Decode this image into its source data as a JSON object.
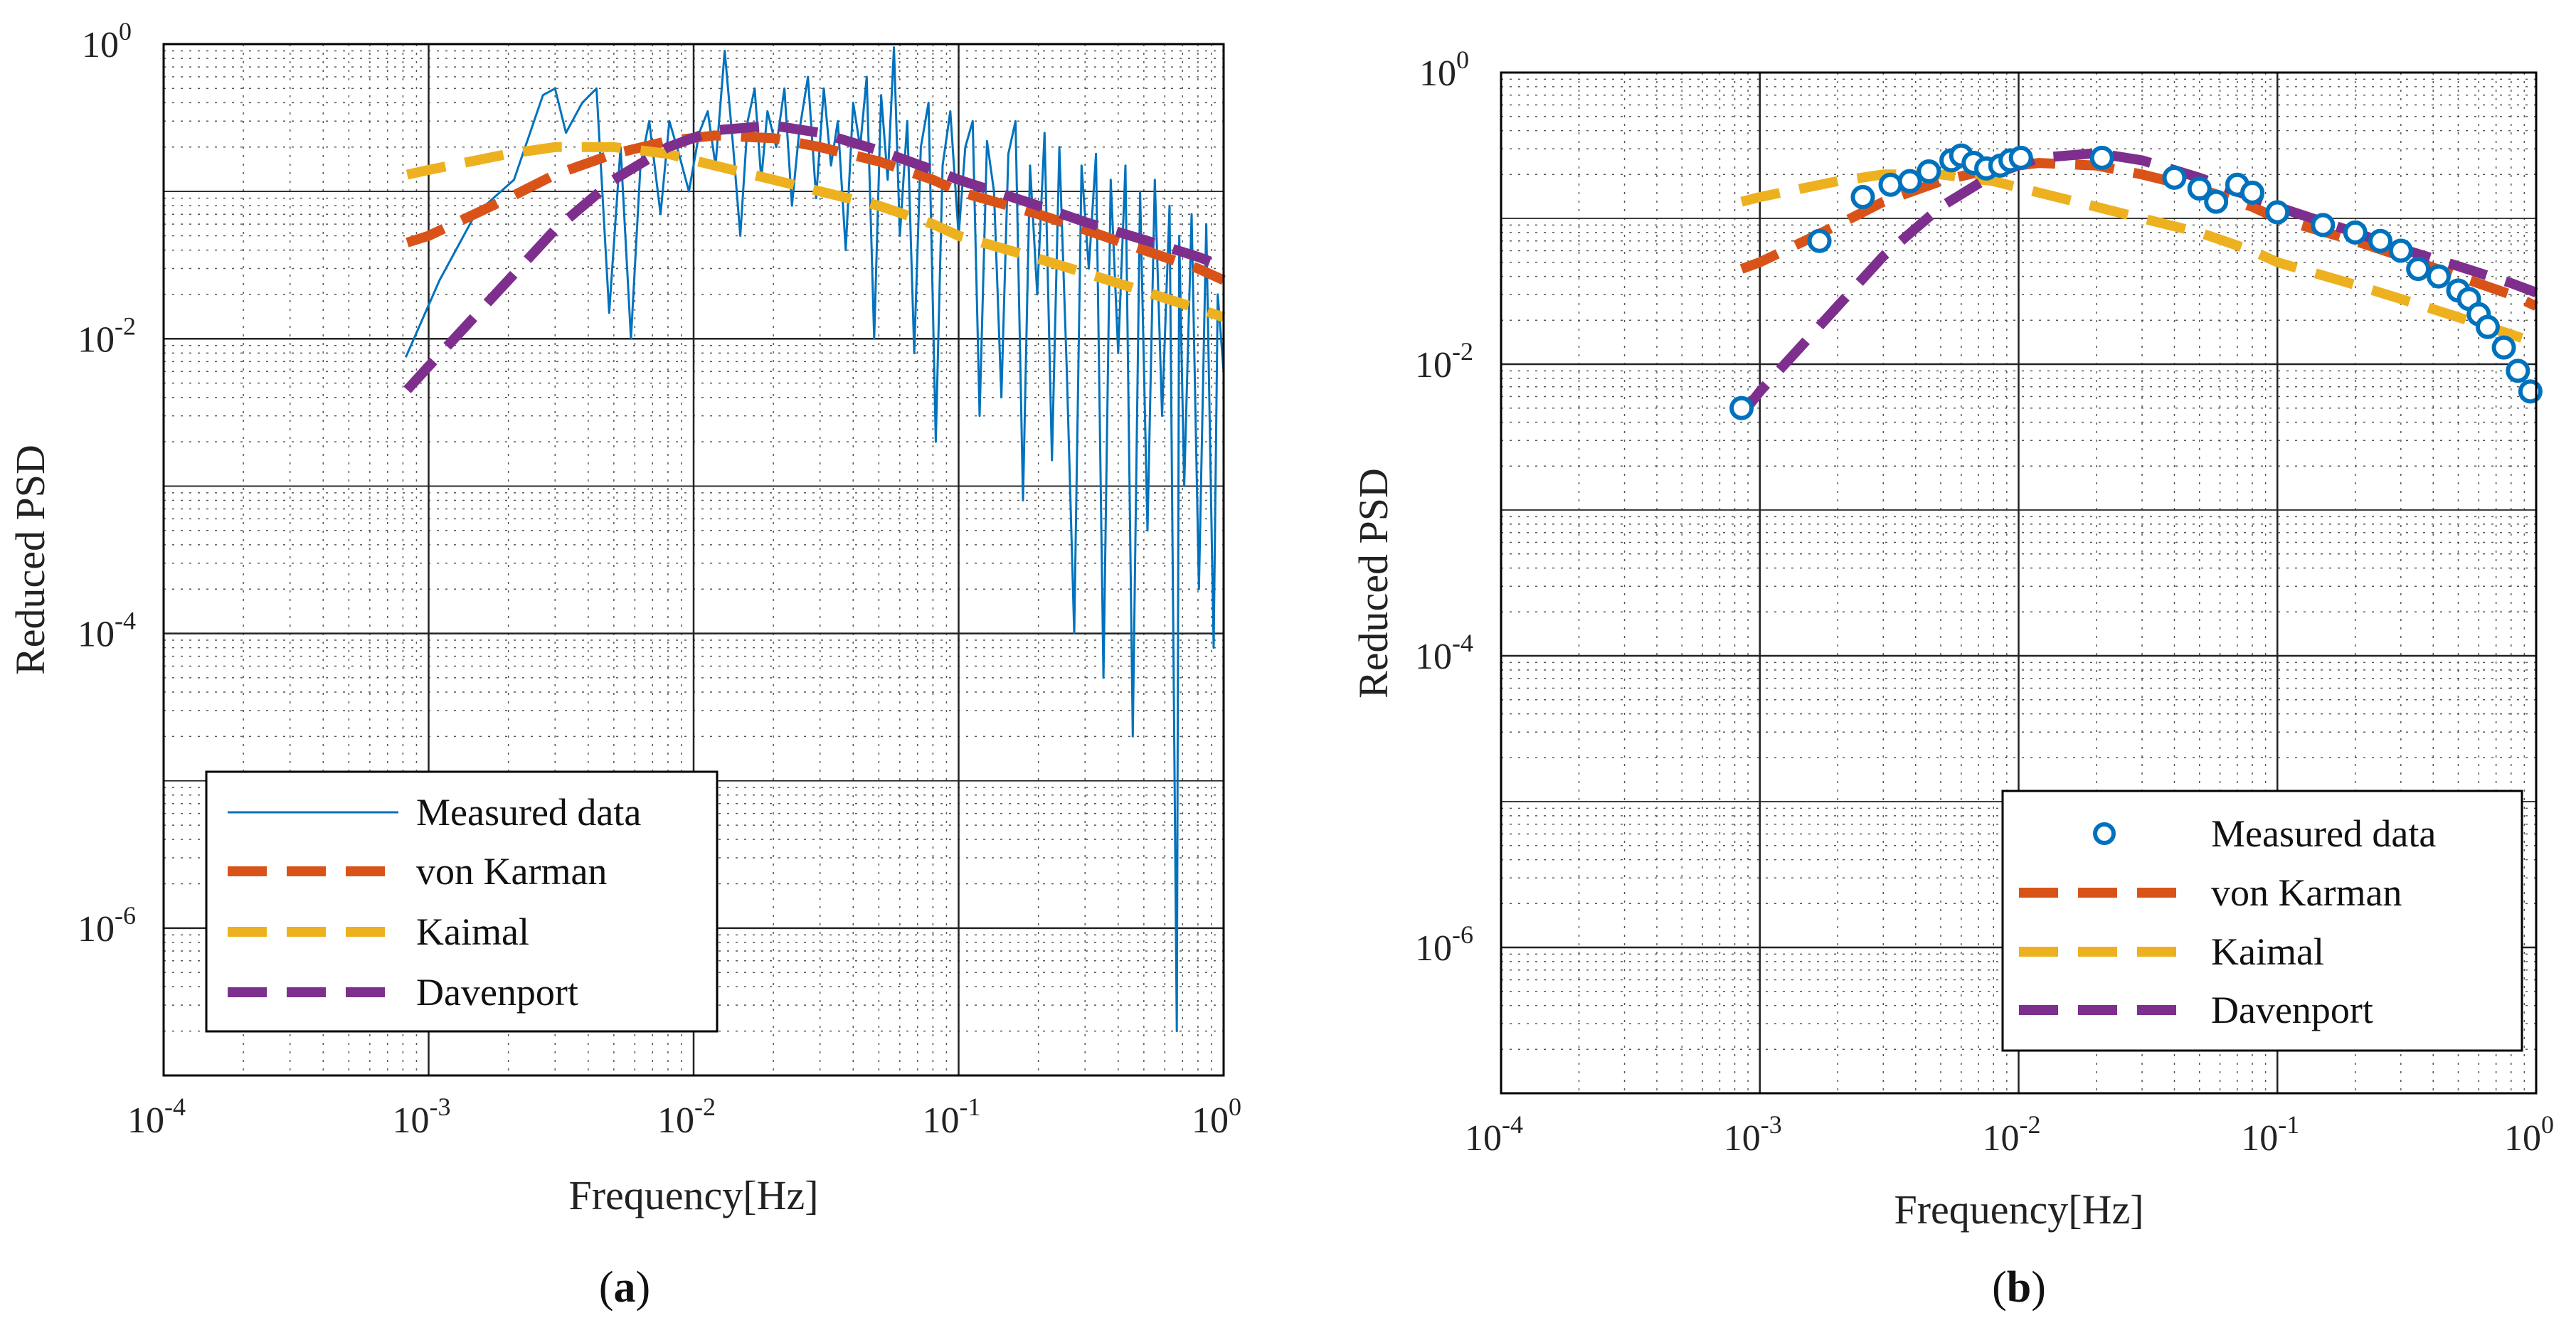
{
  "chart_data": [
    {
      "type": "line",
      "panel": "(a)",
      "caption_letter": "a",
      "xlabel": "Frequency[Hz]",
      "ylabel": "Reduced PSD",
      "xscale": "log",
      "yscale": "log",
      "xlim": [
        0.0001,
        1
      ],
      "ylim": [
        1e-07,
        1
      ],
      "x_ticks": [
        {
          "base": "10",
          "exp": "-4",
          "value": 0.0001
        },
        {
          "base": "10",
          "exp": "-3",
          "value": 0.001
        },
        {
          "base": "10",
          "exp": "-2",
          "value": 0.01
        },
        {
          "base": "10",
          "exp": "-1",
          "value": 0.1
        },
        {
          "base": "10",
          "exp": "0",
          "value": 1
        }
      ],
      "y_ticks": [
        {
          "base": "10",
          "exp": "0",
          "value": 1
        },
        {
          "base": "10",
          "exp": "-2",
          "value": 0.01
        },
        {
          "base": "10",
          "exp": "-4",
          "value": 0.0001
        },
        {
          "base": "10",
          "exp": "-6",
          "value": 1e-06
        }
      ],
      "grid": true,
      "legend_position": "bottom-left",
      "series": [
        {
          "name": "Measured data",
          "style": "thin-line",
          "color": "#0072BD",
          "x": [
            0.00082,
            0.0011,
            0.0015,
            0.0021,
            0.0027,
            0.003,
            0.0033,
            0.0038,
            0.0043,
            0.0048,
            0.0053,
            0.0058,
            0.0063,
            0.0068,
            0.0075,
            0.0081,
            0.0088,
            0.0096,
            0.0105,
            0.0113,
            0.0121,
            0.0131,
            0.0141,
            0.015,
            0.016,
            0.017,
            0.018,
            0.019,
            0.0205,
            0.022,
            0.0235,
            0.025,
            0.027,
            0.029,
            0.031,
            0.033,
            0.035,
            0.0375,
            0.04,
            0.0425,
            0.045,
            0.048,
            0.051,
            0.054,
            0.057,
            0.06,
            0.064,
            0.068,
            0.072,
            0.077,
            0.082,
            0.087,
            0.093,
            0.1,
            0.106,
            0.113,
            0.12,
            0.128,
            0.136,
            0.145,
            0.154,
            0.164,
            0.175,
            0.186,
            0.198,
            0.211,
            0.225,
            0.24,
            0.256,
            0.273,
            0.291,
            0.31,
            0.33,
            0.352,
            0.375,
            0.4,
            0.426,
            0.454,
            0.484,
            0.516,
            0.55,
            0.586,
            0.625,
            0.666,
            0.68,
            0.71,
            0.757,
            0.807,
            0.86,
            0.917,
            0.95,
            1.0
          ],
          "y": [
            0.0075,
            0.025,
            0.07,
            0.12,
            0.45,
            0.5,
            0.25,
            0.4,
            0.5,
            0.015,
            0.2,
            0.01,
            0.15,
            0.3,
            0.07,
            0.3,
            0.18,
            0.1,
            0.25,
            0.35,
            0.15,
            0.9,
            0.2,
            0.05,
            0.3,
            0.5,
            0.12,
            0.35,
            0.2,
            0.5,
            0.08,
            0.25,
            0.6,
            0.09,
            0.5,
            0.15,
            0.3,
            0.04,
            0.4,
            0.2,
            0.6,
            0.01,
            0.45,
            0.12,
            0.95,
            0.05,
            0.3,
            0.008,
            0.2,
            0.4,
            0.002,
            0.15,
            0.35,
            0.05,
            0.2,
            0.3,
            0.003,
            0.22,
            0.1,
            0.004,
            0.18,
            0.3,
            0.0008,
            0.15,
            0.02,
            0.25,
            0.0015,
            0.2,
            0.006,
            0.0001,
            0.15,
            0.03,
            0.18,
            5e-05,
            0.12,
            0.008,
            0.15,
            2e-05,
            0.1,
            0.0005,
            0.12,
            0.003,
            0.08,
            2e-07,
            0.05,
            0.001,
            0.07,
            0.0002,
            0.06,
            8e-05,
            0.02,
            0.006
          ]
        },
        {
          "name": "von Karman",
          "style": "dashed",
          "color": "#D95319",
          "x": [
            0.00083,
            0.001,
            0.002,
            0.003,
            0.005,
            0.008,
            0.012,
            0.02,
            0.03,
            0.05,
            0.08,
            0.1,
            0.2,
            0.3,
            0.5,
            0.8,
            1.0
          ],
          "y": [
            0.045,
            0.05,
            0.09,
            0.13,
            0.18,
            0.22,
            0.24,
            0.23,
            0.2,
            0.16,
            0.12,
            0.1,
            0.07,
            0.055,
            0.04,
            0.03,
            0.025
          ]
        },
        {
          "name": "Kaimal",
          "style": "dashed",
          "color": "#EDB120",
          "x": [
            0.00083,
            0.001,
            0.002,
            0.003,
            0.005,
            0.008,
            0.012,
            0.02,
            0.03,
            0.05,
            0.08,
            0.1,
            0.2,
            0.3,
            0.5,
            0.8,
            1.0
          ],
          "y": [
            0.13,
            0.14,
            0.18,
            0.2,
            0.2,
            0.18,
            0.15,
            0.12,
            0.1,
            0.08,
            0.06,
            0.05,
            0.035,
            0.028,
            0.021,
            0.016,
            0.014
          ]
        },
        {
          "name": "Davenport",
          "style": "dashed",
          "color": "#7E2F8E",
          "x": [
            0.00083,
            0.001,
            0.002,
            0.003,
            0.005,
            0.008,
            0.012,
            0.02,
            0.03,
            0.05,
            0.08,
            0.1,
            0.2,
            0.3,
            0.5,
            0.8,
            1.0
          ],
          "y": [
            0.0045,
            0.0065,
            0.025,
            0.055,
            0.12,
            0.2,
            0.26,
            0.28,
            0.25,
            0.19,
            0.14,
            0.12,
            0.08,
            0.062,
            0.047,
            0.036,
            0.031
          ]
        }
      ]
    },
    {
      "type": "scatter",
      "panel": "(b)",
      "caption_letter": "b",
      "xlabel": "Frequency[Hz]",
      "ylabel": "Reduced PSD",
      "xscale": "log",
      "yscale": "log",
      "xlim": [
        0.0001,
        1
      ],
      "ylim": [
        1e-07,
        1
      ],
      "x_ticks": [
        {
          "base": "10",
          "exp": "-4",
          "value": 0.0001
        },
        {
          "base": "10",
          "exp": "-3",
          "value": 0.001
        },
        {
          "base": "10",
          "exp": "-2",
          "value": 0.01
        },
        {
          "base": "10",
          "exp": "-1",
          "value": 0.1
        },
        {
          "base": "10",
          "exp": "0",
          "value": 1
        }
      ],
      "y_ticks": [
        {
          "base": "10",
          "exp": "0",
          "value": 1
        },
        {
          "base": "10",
          "exp": "-2",
          "value": 0.01
        },
        {
          "base": "10",
          "exp": "-4",
          "value": 0.0001
        },
        {
          "base": "10",
          "exp": "-6",
          "value": 1e-06
        }
      ],
      "grid": true,
      "legend_position": "bottom-right",
      "series": [
        {
          "name": "Measured data",
          "style": "circles",
          "color": "#0072BD",
          "x": [
            0.00085,
            0.0017,
            0.0025,
            0.0032,
            0.0038,
            0.0045,
            0.0055,
            0.006,
            0.0067,
            0.0075,
            0.0085,
            0.0093,
            0.0102,
            0.021,
            0.04,
            0.05,
            0.058,
            0.07,
            0.08,
            0.1,
            0.15,
            0.2,
            0.25,
            0.3,
            0.35,
            0.42,
            0.5,
            0.55,
            0.6,
            0.65,
            0.75,
            0.85,
            0.95
          ],
          "y": [
            0.005,
            0.07,
            0.14,
            0.17,
            0.18,
            0.21,
            0.25,
            0.27,
            0.24,
            0.22,
            0.23,
            0.25,
            0.26,
            0.26,
            0.19,
            0.16,
            0.13,
            0.17,
            0.15,
            0.11,
            0.09,
            0.08,
            0.07,
            0.06,
            0.045,
            0.04,
            0.032,
            0.028,
            0.022,
            0.018,
            0.013,
            0.009,
            0.0065
          ]
        },
        {
          "name": "von Karman",
          "style": "dashed",
          "color": "#D95319",
          "x": [
            0.00085,
            0.001,
            0.002,
            0.003,
            0.005,
            0.008,
            0.012,
            0.02,
            0.03,
            0.05,
            0.08,
            0.1,
            0.2,
            0.3,
            0.5,
            0.8,
            1.0
          ],
          "y": [
            0.045,
            0.05,
            0.09,
            0.13,
            0.18,
            0.22,
            0.24,
            0.23,
            0.2,
            0.16,
            0.12,
            0.1,
            0.07,
            0.055,
            0.04,
            0.03,
            0.025
          ]
        },
        {
          "name": "Kaimal",
          "style": "dashed",
          "color": "#EDB120",
          "x": [
            0.00085,
            0.001,
            0.002,
            0.003,
            0.005,
            0.008,
            0.012,
            0.02,
            0.03,
            0.05,
            0.08,
            0.1,
            0.2,
            0.3,
            0.5,
            0.8,
            1.0
          ],
          "y": [
            0.13,
            0.14,
            0.18,
            0.2,
            0.2,
            0.18,
            0.15,
            0.12,
            0.1,
            0.08,
            0.06,
            0.05,
            0.035,
            0.028,
            0.021,
            0.016,
            0.014
          ]
        },
        {
          "name": "Davenport",
          "style": "dashed",
          "color": "#7E2F8E",
          "x": [
            0.00085,
            0.001,
            0.002,
            0.003,
            0.005,
            0.008,
            0.012,
            0.02,
            0.03,
            0.05,
            0.08,
            0.1,
            0.2,
            0.3,
            0.5,
            0.8,
            1.0
          ],
          "y": [
            0.0045,
            0.0065,
            0.025,
            0.055,
            0.12,
            0.2,
            0.26,
            0.28,
            0.25,
            0.19,
            0.14,
            0.12,
            0.08,
            0.062,
            0.047,
            0.036,
            0.031
          ]
        }
      ]
    }
  ]
}
